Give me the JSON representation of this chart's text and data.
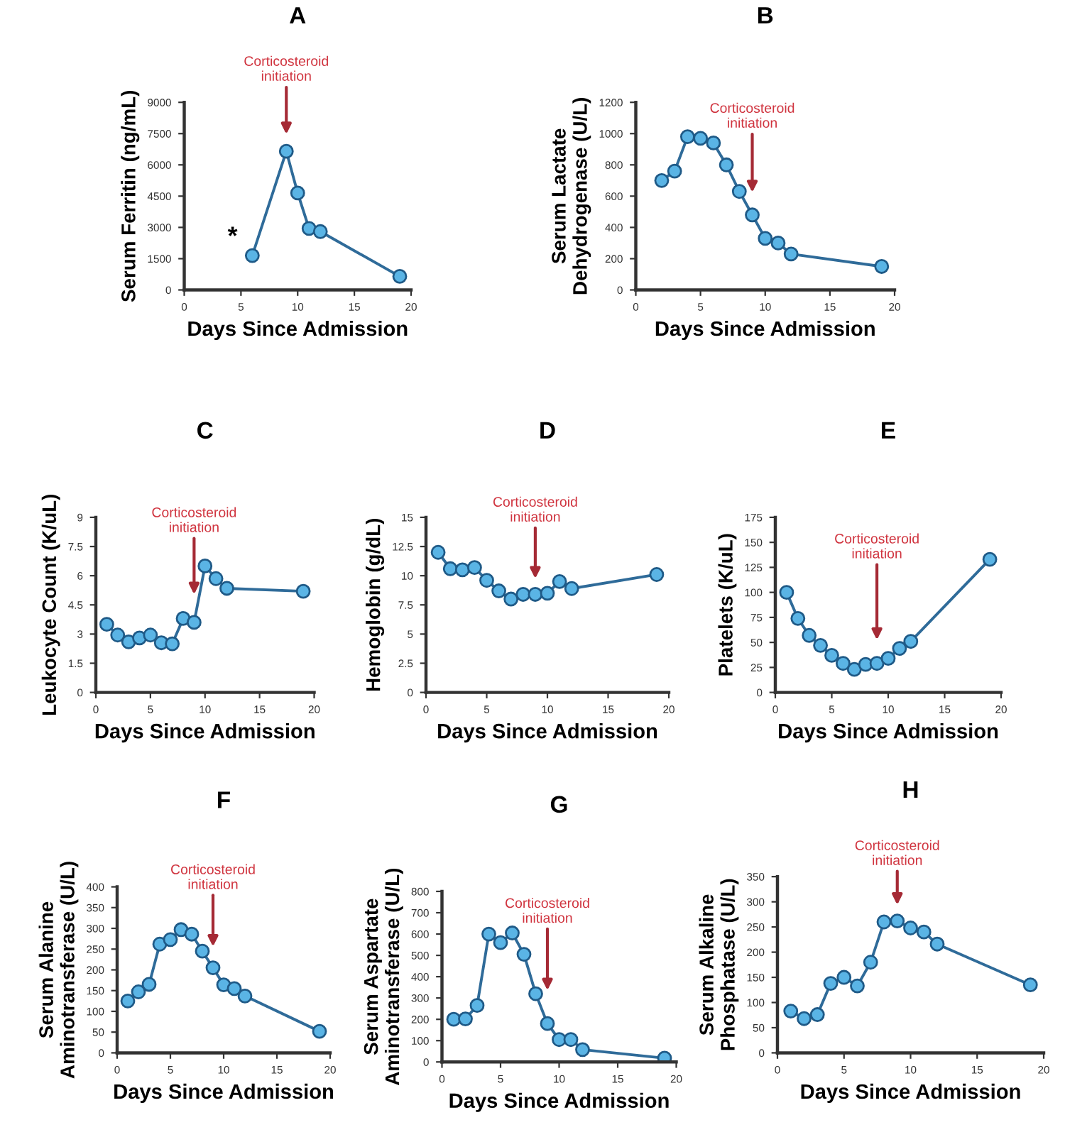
{
  "chart_data": [
    {
      "type": "line",
      "title": "A",
      "xlabel": "Days Since Admission",
      "ylabel": "Serum Ferritin (ng/mL)",
      "x": [
        6,
        9,
        10,
        11,
        12,
        19
      ],
      "series": [
        {
          "color": "#5ab4e5",
          "values": [
            1650,
            6650,
            4650,
            2950,
            2800,
            650
          ]
        }
      ],
      "xlim": [
        0,
        20
      ],
      "xticks": [
        0,
        5,
        10,
        15,
        20
      ],
      "ylim": [
        0,
        9000
      ],
      "yticks": [
        0,
        1500,
        3000,
        4500,
        6000,
        7500,
        9000
      ],
      "marker": "circle",
      "line_style": "solid",
      "grid": false,
      "legend": false,
      "annotations": [
        "Corticosteroid\ninitiation",
        {
          "text": "*",
          "x": 6,
          "y": 1650
        }
      ]
    },
    {
      "type": "line",
      "title": "B",
      "xlabel": "Days Since Admission",
      "ylabel": "Serum Lactate\nDehydrogenase (U/L)",
      "x": [
        2,
        3,
        4,
        5,
        6,
        7,
        8,
        9,
        10,
        11,
        12,
        19
      ],
      "series": [
        {
          "color": "#5ab4e5",
          "values": [
            700,
            760,
            980,
            970,
            940,
            800,
            630,
            480,
            330,
            300,
            230,
            150
          ]
        }
      ],
      "xlim": [
        0,
        20
      ],
      "xticks": [
        0,
        5,
        10,
        15,
        20
      ],
      "ylim": [
        0,
        1200
      ],
      "yticks": [
        0,
        200,
        400,
        600,
        800,
        1000,
        1200
      ],
      "marker": "circle",
      "line_style": "solid",
      "grid": false,
      "legend": false,
      "annotations": [
        "Corticosteroid\ninitiation"
      ]
    },
    {
      "type": "line",
      "title": "C",
      "xlabel": "Days Since Admission",
      "ylabel": "Leukocyte Count (K/uL)",
      "x": [
        1,
        2,
        3,
        4,
        5,
        6,
        7,
        8,
        9,
        10,
        11,
        12,
        19
      ],
      "series": [
        {
          "color": "#5ab4e5",
          "values": [
            3.5,
            2.95,
            2.6,
            2.8,
            2.95,
            2.55,
            2.5,
            3.8,
            3.6,
            6.5,
            5.85,
            5.35,
            5.2
          ]
        }
      ],
      "xlim": [
        0,
        20
      ],
      "xticks": [
        0,
        5,
        10,
        15,
        20
      ],
      "ylim": [
        0,
        9
      ],
      "yticks": [
        0,
        1.5,
        3,
        4.5,
        6,
        7.5,
        9
      ],
      "marker": "circle",
      "line_style": "solid",
      "grid": false,
      "legend": false,
      "annotations": [
        "Corticosteroid\ninitiation"
      ]
    },
    {
      "type": "line",
      "title": "D",
      "xlabel": "Days Since Admission",
      "ylabel": "Hemoglobin (g/dL)",
      "x": [
        1,
        2,
        3,
        4,
        5,
        6,
        7,
        8,
        9,
        10,
        11,
        12,
        19
      ],
      "series": [
        {
          "color": "#5ab4e5",
          "values": [
            12,
            10.6,
            10.5,
            10.7,
            9.6,
            8.7,
            8.0,
            8.4,
            8.4,
            8.5,
            9.5,
            8.9,
            10.1
          ]
        }
      ],
      "xlim": [
        0,
        20
      ],
      "xticks": [
        0,
        5,
        10,
        15,
        20
      ],
      "ylim": [
        0,
        15
      ],
      "yticks": [
        0,
        2.5,
        5,
        7.5,
        10,
        12.5,
        15
      ],
      "marker": "circle",
      "line_style": "solid",
      "grid": false,
      "legend": false,
      "annotations": [
        "Corticosteroid\ninitiation"
      ]
    },
    {
      "type": "line",
      "title": "E",
      "xlabel": "Days Since Admission",
      "ylabel": "Platelets (K/uL)",
      "x": [
        1,
        2,
        3,
        4,
        5,
        6,
        7,
        8,
        9,
        10,
        11,
        12,
        19
      ],
      "series": [
        {
          "color": "#5ab4e5",
          "values": [
            100,
            74,
            57,
            47,
            37,
            29,
            23,
            28,
            29,
            34,
            44,
            51,
            133
          ]
        }
      ],
      "xlim": [
        0,
        20
      ],
      "xticks": [
        0,
        5,
        10,
        15,
        20
      ],
      "ylim": [
        0,
        175
      ],
      "yticks": [
        0,
        25,
        50,
        75,
        100,
        125,
        150,
        175
      ],
      "marker": "circle",
      "line_style": "solid",
      "grid": false,
      "legend": false,
      "annotations": [
        "Corticosteroid\ninitiation"
      ]
    },
    {
      "type": "line",
      "title": "F",
      "xlabel": "Days Since Admission",
      "ylabel": "Serum Alanine\nAminotransferase (U/L)",
      "x": [
        1,
        2,
        3,
        4,
        5,
        6,
        7,
        8,
        9,
        10,
        11,
        12,
        19
      ],
      "series": [
        {
          "color": "#5ab4e5",
          "values": [
            125,
            147,
            165,
            262,
            273,
            297,
            286,
            245,
            205,
            164,
            155,
            137,
            52
          ]
        }
      ],
      "xlim": [
        0,
        20
      ],
      "xticks": [
        0,
        5,
        10,
        15,
        20
      ],
      "ylim": [
        0,
        400
      ],
      "yticks": [
        0,
        50,
        100,
        150,
        200,
        250,
        300,
        350,
        400
      ],
      "marker": "circle",
      "line_style": "solid",
      "grid": false,
      "legend": false,
      "annotations": [
        "Corticosteroid\ninitiation"
      ]
    },
    {
      "type": "line",
      "title": "G",
      "xlabel": "Days Since Admission",
      "ylabel": "Serum Aspartate\nAminotransferase (U/L)",
      "x": [
        1,
        2,
        3,
        4,
        5,
        6,
        7,
        8,
        9,
        10,
        11,
        12,
        19
      ],
      "series": [
        {
          "color": "#5ab4e5",
          "values": [
            200,
            202,
            265,
            600,
            560,
            605,
            505,
            320,
            180,
            105,
            105,
            58,
            18
          ]
        }
      ],
      "xlim": [
        0,
        20
      ],
      "xticks": [
        0,
        5,
        10,
        15,
        20
      ],
      "ylim": [
        0,
        800
      ],
      "yticks": [
        0,
        100,
        200,
        300,
        400,
        500,
        600,
        700,
        800
      ],
      "marker": "circle",
      "line_style": "solid",
      "grid": false,
      "legend": false,
      "annotations": [
        "Corticosteroid\ninitiation"
      ]
    },
    {
      "type": "line",
      "title": "H",
      "xlabel": "Days Since Admission",
      "ylabel": "Serum Alkaline\nPhosphatase (U/L)",
      "x": [
        1,
        2,
        3,
        4,
        5,
        6,
        7,
        8,
        9,
        10,
        11,
        12,
        19
      ],
      "series": [
        {
          "color": "#5ab4e5",
          "values": [
            83,
            68,
            76,
            138,
            150,
            133,
            180,
            260,
            262,
            248,
            240,
            216,
            135
          ]
        }
      ],
      "xlim": [
        0,
        20
      ],
      "xticks": [
        0,
        5,
        10,
        15,
        20
      ],
      "ylim": [
        0,
        350
      ],
      "yticks": [
        0,
        50,
        100,
        150,
        200,
        250,
        300,
        350
      ],
      "marker": "circle",
      "line_style": "solid",
      "grid": false,
      "legend": false,
      "annotations": [
        "Corticosteroid\ninitiation"
      ]
    }
  ]
}
